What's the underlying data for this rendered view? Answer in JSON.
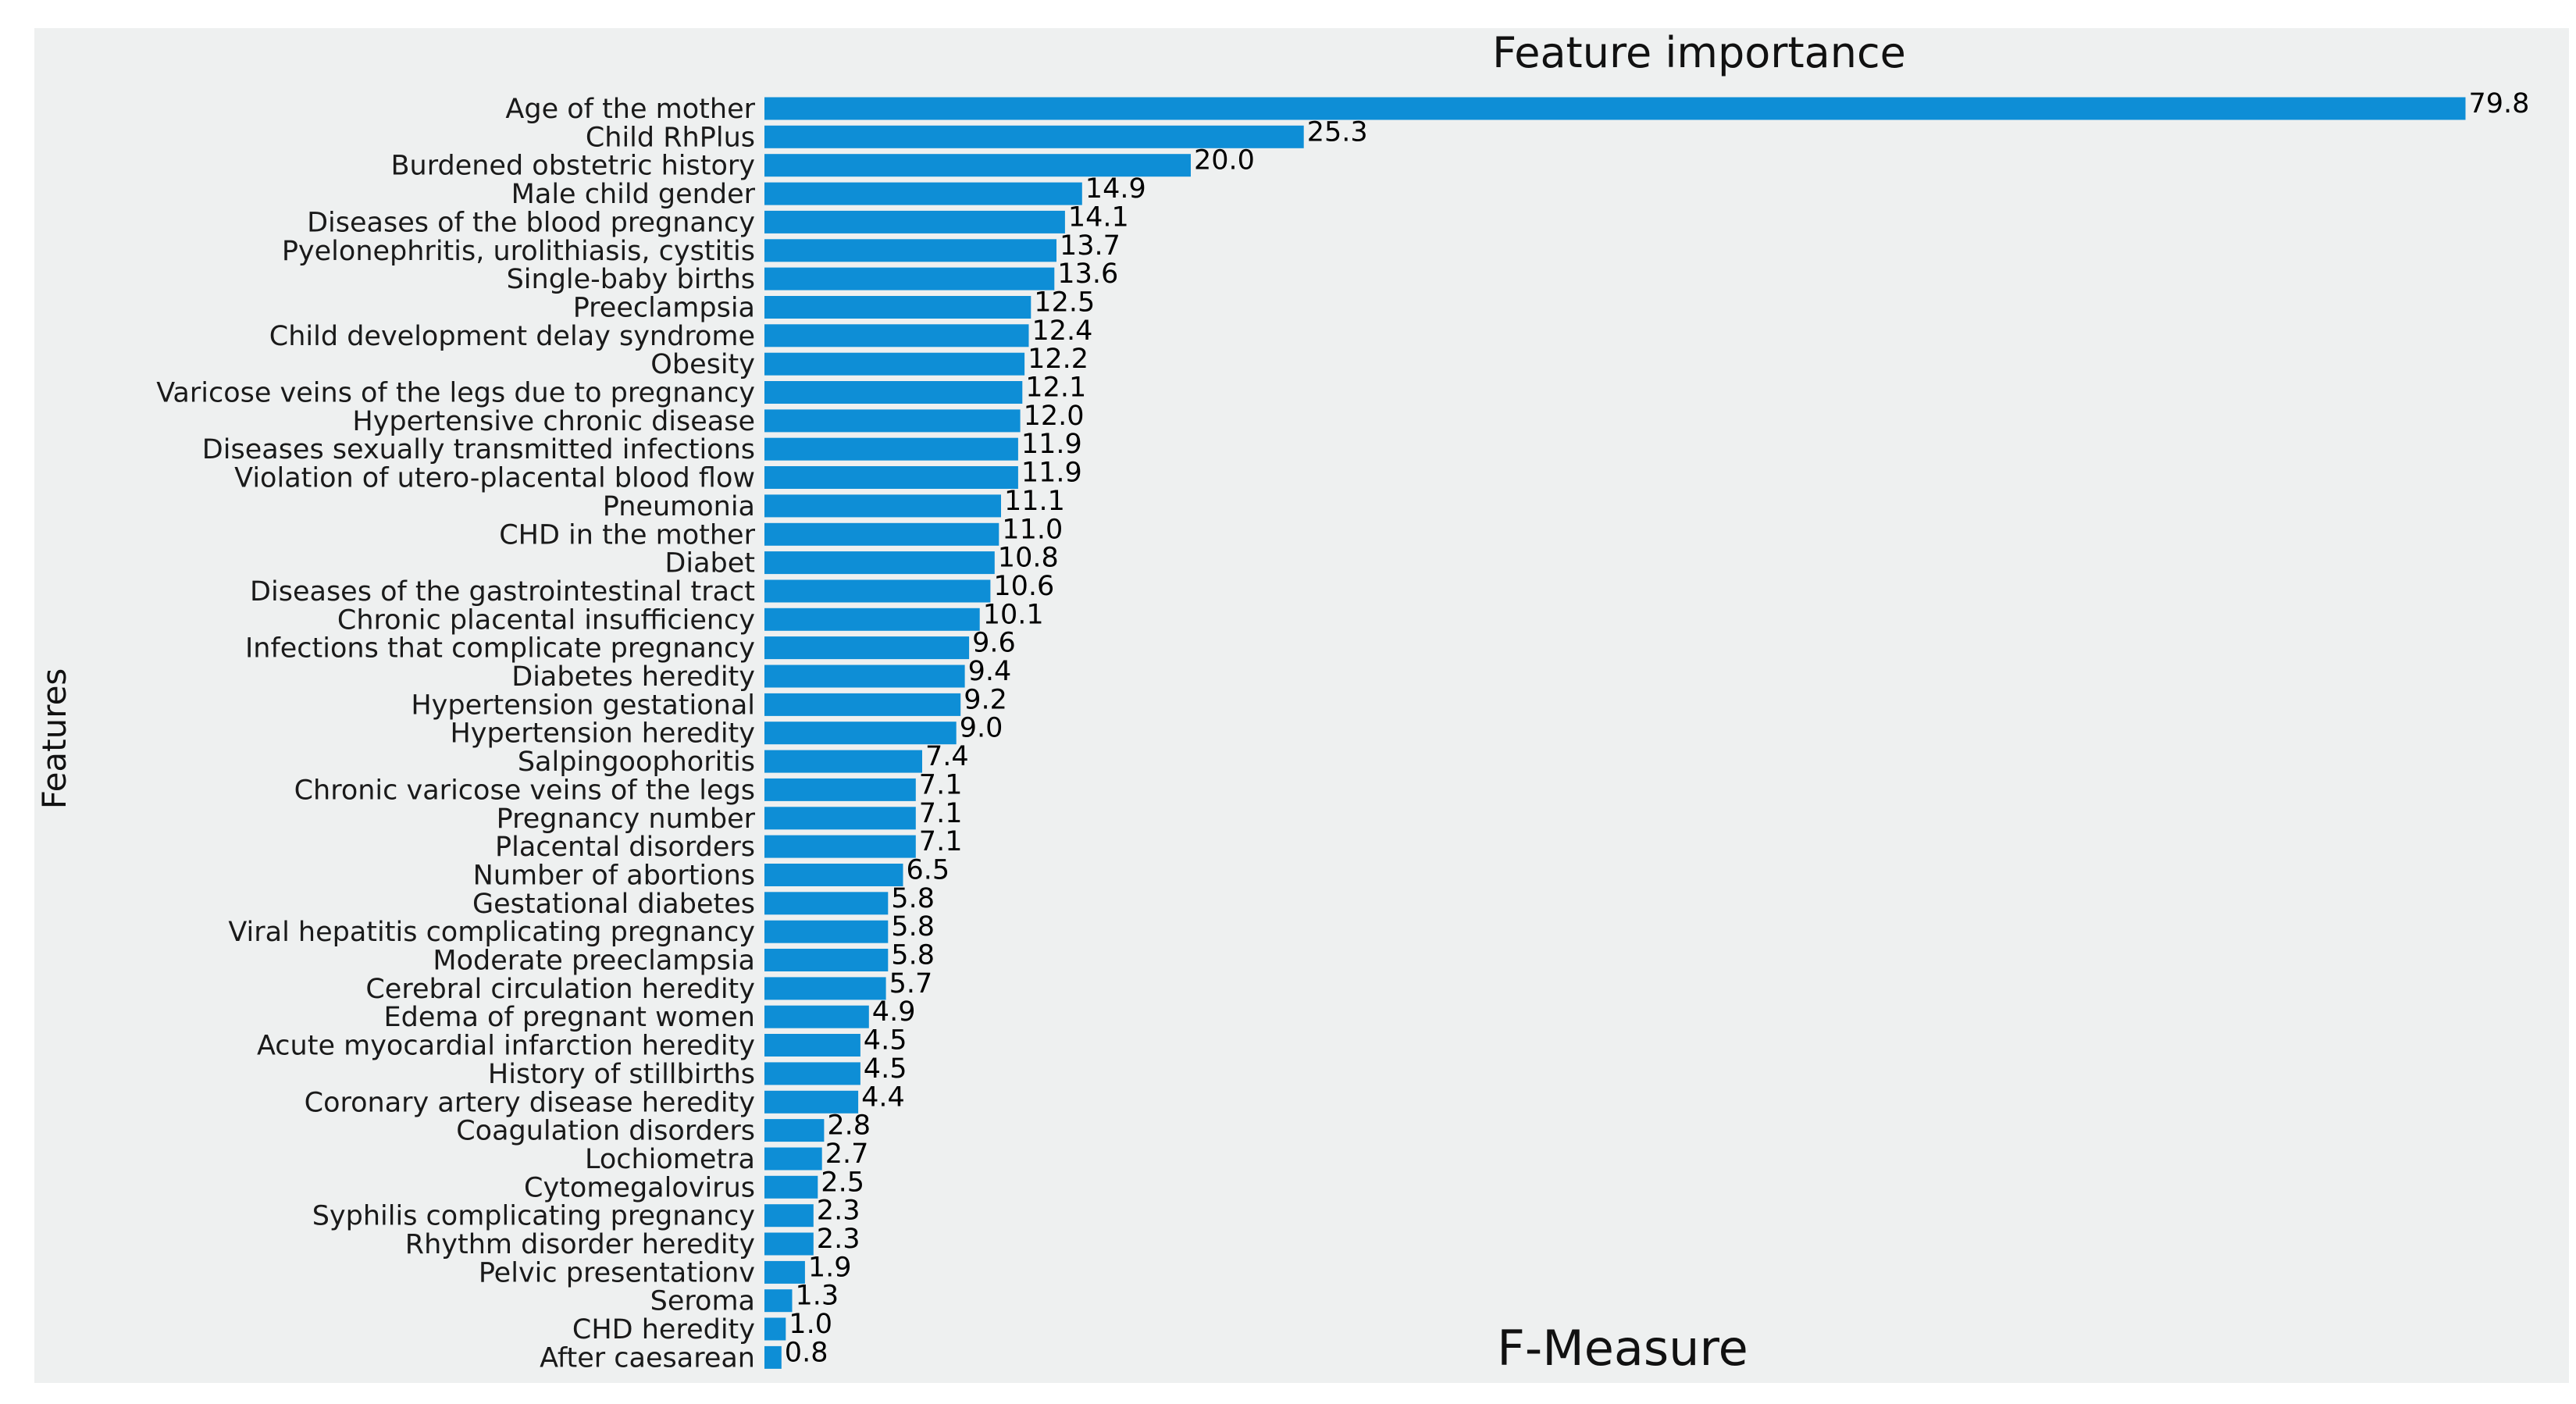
{
  "chart_data": {
    "type": "bar",
    "orientation": "horizontal",
    "title": "Feature importance",
    "xlabel": "F-Measure",
    "ylabel": "Features",
    "xlim": [
      0,
      82
    ],
    "grid": false,
    "bar_color": "#0e8ed6",
    "background_color": "#eef0f0",
    "categories": [
      "Age of the mother",
      "Child RhPlus",
      "Burdened obstetric history",
      "Male child gender",
      "Diseases of the blood pregnancy",
      "Pyelonephritis, urolithiasis, cystitis",
      "Single-baby births",
      "Preeclampsia",
      "Child development delay syndrome",
      "Obesity",
      "Varicose veins of the legs due to pregnancy",
      "Hypertensive chronic disease",
      "Diseases sexually transmitted infections",
      "Violation of utero-placental blood flow",
      "Pneumonia",
      "CHD in the mother",
      "Diabet",
      "Diseases of the gastrointestinal tract",
      "Chronic placental insufficiency",
      "Infections that complicate pregnancy",
      "Diabetes heredity",
      "Hypertension gestational",
      "Hypertension heredity",
      "Salpingoophoritis",
      "Chronic varicose veins of the legs",
      "Pregnancy number",
      "Placental disorders",
      "Number of abortions",
      "Gestational diabetes",
      "Viral hepatitis complicating pregnancy",
      "Moderate preeclampsia",
      "Cerebral circulation heredity",
      "Edema of pregnant women",
      "Acute myocardial infarction heredity",
      "History of stillbirths",
      "Coronary artery disease heredity",
      "Coagulation disorders",
      "Lochiometra",
      "Cytomegalovirus",
      "Syphilis complicating pregnancy",
      "Rhythm disorder heredity",
      "Pelvic presentationv",
      "Seroma",
      "CHD heredity",
      "After caesarean"
    ],
    "values": [
      79.8,
      25.3,
      20.0,
      14.9,
      14.1,
      13.7,
      13.6,
      12.5,
      12.4,
      12.2,
      12.1,
      12.0,
      11.9,
      11.9,
      11.1,
      11.0,
      10.8,
      10.6,
      10.1,
      9.6,
      9.4,
      9.2,
      9.0,
      7.4,
      7.1,
      7.1,
      7.1,
      6.5,
      5.8,
      5.8,
      5.8,
      5.7,
      4.9,
      4.5,
      4.5,
      4.4,
      2.8,
      2.7,
      2.5,
      2.3,
      2.3,
      1.9,
      1.3,
      1.0,
      0.8
    ],
    "value_labels": [
      "79.8",
      "25.3",
      "20.0",
      "14.9",
      "14.1",
      "13.7",
      "13.6",
      "12.5",
      "12.4",
      "12.2",
      "12.1",
      "12.0",
      "11.9",
      "11.9",
      "11.1",
      "11.0",
      "10.8",
      "10.6",
      "10.1",
      "9.6",
      "9.4",
      "9.2",
      "9.0",
      "7.4",
      "7.1",
      "7.1",
      "7.1",
      "6.5",
      "5.8",
      "5.8",
      "5.8",
      "5.7",
      "4.9",
      "4.5",
      "4.5",
      "4.4",
      "2.8",
      "2.7",
      "2.5",
      "2.3",
      "2.3",
      "1.9",
      "1.3",
      "1.0",
      "0.8"
    ]
  }
}
